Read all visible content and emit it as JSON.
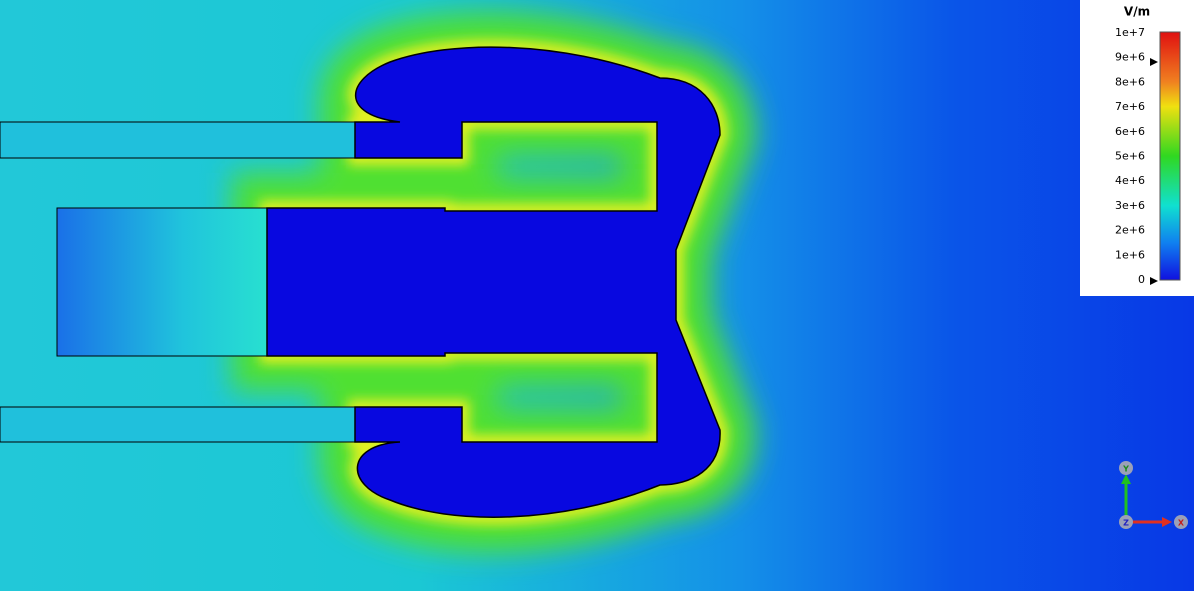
{
  "legend": {
    "unit": "V/m",
    "ticks": [
      "1e+7",
      "9e+6",
      "8e+6",
      "7e+6",
      "6e+6",
      "5e+6",
      "4e+6",
      "3e+6",
      "2e+6",
      "1e+6",
      "0"
    ]
  },
  "axes": {
    "y": "Y",
    "z": "Z",
    "x": "X"
  }
}
